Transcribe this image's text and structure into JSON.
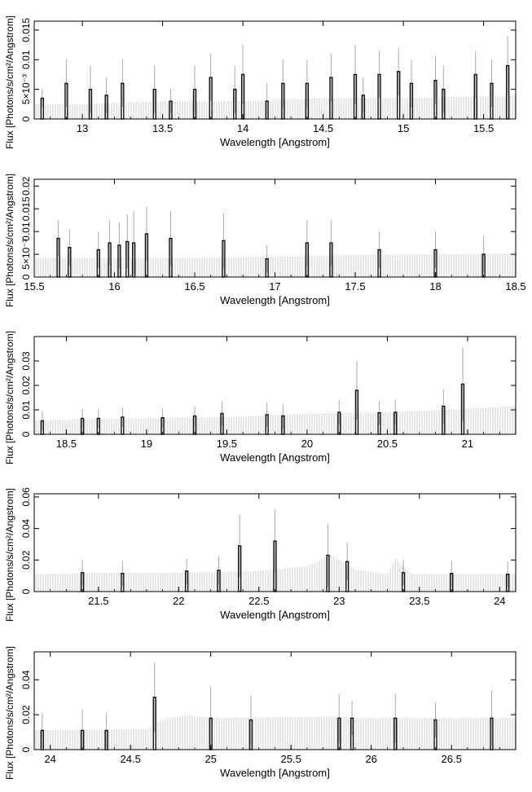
{
  "chart_data": [
    {
      "type": "histogram",
      "xlabel": "Wavelength [Angstrom]",
      "ylabel": "Flux [Photons/s/cm²/Angstrom]",
      "xlim": [
        12.7,
        15.7
      ],
      "ylim": [
        0,
        0.0165
      ],
      "xticks": [
        13,
        13.5,
        14,
        14.5,
        15,
        15.5
      ],
      "xtick_labels": [
        "13",
        "13.5",
        "14",
        "14.5",
        "15",
        "15.5"
      ],
      "yticks": [
        0,
        0.005,
        0.01,
        0.015
      ],
      "ytick_labels": [
        "0",
        "5×10⁻³",
        "0.01",
        "0.015"
      ],
      "baseline": [
        {
          "x": 12.7,
          "y": 0.0025
        },
        {
          "x": 13.0,
          "y": 0.0025
        },
        {
          "x": 13.5,
          "y": 0.003
        },
        {
          "x": 14.0,
          "y": 0.003
        },
        {
          "x": 14.5,
          "y": 0.0035
        },
        {
          "x": 15.0,
          "y": 0.0035
        },
        {
          "x": 15.7,
          "y": 0.004
        }
      ],
      "series": [
        {
          "points": [
            {
              "x": 12.75,
              "y": 0.0035,
              "err": 0.0015
            },
            {
              "x": 12.9,
              "y": 0.006,
              "err": 0.004
            },
            {
              "x": 13.05,
              "y": 0.005,
              "err": 0.004
            },
            {
              "x": 13.15,
              "y": 0.004,
              "err": 0.003
            },
            {
              "x": 13.25,
              "y": 0.006,
              "err": 0.004
            },
            {
              "x": 13.45,
              "y": 0.005,
              "err": 0.004
            },
            {
              "x": 13.55,
              "y": 0.003,
              "err": 0.002
            },
            {
              "x": 13.7,
              "y": 0.005,
              "err": 0.004
            },
            {
              "x": 13.8,
              "y": 0.007,
              "err": 0.004
            },
            {
              "x": 13.95,
              "y": 0.005,
              "err": 0.004
            },
            {
              "x": 14.0,
              "y": 0.0075,
              "err": 0.005
            },
            {
              "x": 14.15,
              "y": 0.003,
              "err": 0.003
            },
            {
              "x": 14.25,
              "y": 0.006,
              "err": 0.004
            },
            {
              "x": 14.4,
              "y": 0.006,
              "err": 0.004
            },
            {
              "x": 14.55,
              "y": 0.007,
              "err": 0.004
            },
            {
              "x": 14.7,
              "y": 0.0075,
              "err": 0.005
            },
            {
              "x": 14.75,
              "y": 0.004,
              "err": 0.003
            },
            {
              "x": 14.85,
              "y": 0.0075,
              "err": 0.004
            },
            {
              "x": 14.97,
              "y": 0.008,
              "err": 0.004
            },
            {
              "x": 15.05,
              "y": 0.006,
              "err": 0.004
            },
            {
              "x": 15.2,
              "y": 0.0065,
              "err": 0.004
            },
            {
              "x": 15.25,
              "y": 0.005,
              "err": 0.004
            },
            {
              "x": 15.45,
              "y": 0.0075,
              "err": 0.004
            },
            {
              "x": 15.55,
              "y": 0.006,
              "err": 0.004
            },
            {
              "x": 15.65,
              "y": 0.009,
              "err": 0.005
            }
          ]
        }
      ]
    },
    {
      "type": "histogram",
      "xlabel": "Wavelength [Angstrom]",
      "ylabel": "Flux [Photons/s/cm²/Angstrom]",
      "xlim": [
        15.5,
        18.5
      ],
      "ylim": [
        0,
        0.0215
      ],
      "xticks": [
        15.5,
        16,
        16.5,
        17,
        17.5,
        18,
        18.5
      ],
      "xtick_labels": [
        "15.5",
        "16",
        "16.5",
        "17",
        "17.5",
        "18",
        "18.5"
      ],
      "yticks": [
        0,
        0.005,
        0.01,
        0.015,
        0.02
      ],
      "ytick_labels": [
        "0",
        "5×10⁻³",
        "0.01",
        "0.015",
        "0.02"
      ],
      "baseline": [
        {
          "x": 15.5,
          "y": 0.0042
        },
        {
          "x": 16.0,
          "y": 0.0042
        },
        {
          "x": 16.5,
          "y": 0.0042
        },
        {
          "x": 17.0,
          "y": 0.0045
        },
        {
          "x": 17.5,
          "y": 0.0048
        },
        {
          "x": 18.0,
          "y": 0.005
        },
        {
          "x": 18.5,
          "y": 0.0052
        }
      ],
      "series": [
        {
          "points": [
            {
              "x": 15.65,
              "y": 0.0085,
              "err": 0.004
            },
            {
              "x": 15.72,
              "y": 0.0065,
              "err": 0.004
            },
            {
              "x": 15.9,
              "y": 0.006,
              "err": 0.004
            },
            {
              "x": 15.97,
              "y": 0.0075,
              "err": 0.005
            },
            {
              "x": 16.03,
              "y": 0.007,
              "err": 0.005
            },
            {
              "x": 16.08,
              "y": 0.0078,
              "err": 0.006
            },
            {
              "x": 16.12,
              "y": 0.0075,
              "err": 0.007
            },
            {
              "x": 16.2,
              "y": 0.0095,
              "err": 0.006
            },
            {
              "x": 16.35,
              "y": 0.0085,
              "err": 0.006
            },
            {
              "x": 16.68,
              "y": 0.008,
              "err": 0.006
            },
            {
              "x": 16.95,
              "y": 0.004,
              "err": 0.003
            },
            {
              "x": 17.2,
              "y": 0.0075,
              "err": 0.005
            },
            {
              "x": 17.35,
              "y": 0.0075,
              "err": 0.005
            },
            {
              "x": 17.65,
              "y": 0.006,
              "err": 0.004
            },
            {
              "x": 18.0,
              "y": 0.006,
              "err": 0.004
            },
            {
              "x": 18.3,
              "y": 0.005,
              "err": 0.004
            }
          ]
        }
      ]
    },
    {
      "type": "histogram",
      "xlabel": "Wavelength [Angstrom]",
      "ylabel": "Flux [Photons/s/cm²/Angstrom]",
      "xlim": [
        18.3,
        21.3
      ],
      "ylim": [
        0,
        0.04
      ],
      "xticks": [
        18.5,
        19,
        19.5,
        20,
        20.5,
        21
      ],
      "xtick_labels": [
        "18.5",
        "19",
        "19.5",
        "20",
        "20.5",
        "21"
      ],
      "yticks": [
        0,
        0.01,
        0.02,
        0.03
      ],
      "ytick_labels": [
        "0",
        "0.01",
        "0.02",
        "0.03"
      ],
      "baseline": [
        {
          "x": 18.3,
          "y": 0.0058
        },
        {
          "x": 19.0,
          "y": 0.0065
        },
        {
          "x": 19.5,
          "y": 0.007
        },
        {
          "x": 20.0,
          "y": 0.0085
        },
        {
          "x": 20.5,
          "y": 0.009
        },
        {
          "x": 21.0,
          "y": 0.0105
        },
        {
          "x": 21.3,
          "y": 0.0115
        }
      ],
      "series": [
        {
          "points": [
            {
              "x": 18.35,
              "y": 0.0055,
              "err": 0.004
            },
            {
              "x": 18.6,
              "y": 0.0065,
              "err": 0.004
            },
            {
              "x": 18.7,
              "y": 0.0065,
              "err": 0.004
            },
            {
              "x": 18.85,
              "y": 0.007,
              "err": 0.004
            },
            {
              "x": 19.1,
              "y": 0.0068,
              "err": 0.004
            },
            {
              "x": 19.3,
              "y": 0.0075,
              "err": 0.004
            },
            {
              "x": 19.47,
              "y": 0.0085,
              "err": 0.005
            },
            {
              "x": 19.75,
              "y": 0.008,
              "err": 0.005
            },
            {
              "x": 19.85,
              "y": 0.0075,
              "err": 0.005
            },
            {
              "x": 20.2,
              "y": 0.009,
              "err": 0.005
            },
            {
              "x": 20.31,
              "y": 0.018,
              "err": 0.012
            },
            {
              "x": 20.45,
              "y": 0.0088,
              "err": 0.005
            },
            {
              "x": 20.55,
              "y": 0.009,
              "err": 0.005
            },
            {
              "x": 20.85,
              "y": 0.0115,
              "err": 0.007
            },
            {
              "x": 20.97,
              "y": 0.0205,
              "err": 0.015
            }
          ]
        }
      ]
    },
    {
      "type": "histogram",
      "xlabel": "Wavelength [Angstrom]",
      "ylabel": "Flux [Photons/s/cm²/Angstrom]",
      "xlim": [
        21.1,
        24.1
      ],
      "ylim": [
        0,
        0.062
      ],
      "xticks": [
        21.5,
        22,
        22.5,
        23,
        23.5,
        24
      ],
      "xtick_labels": [
        "21.5",
        "22",
        "22.5",
        "23",
        "23.5",
        "24"
      ],
      "yticks": [
        0,
        0.02,
        0.04,
        0.06
      ],
      "ytick_labels": [
        "0",
        "0.02",
        "0.04",
        "0.06"
      ],
      "baseline": [
        {
          "x": 21.1,
          "y": 0.011
        },
        {
          "x": 21.5,
          "y": 0.012
        },
        {
          "x": 22.0,
          "y": 0.012
        },
        {
          "x": 22.5,
          "y": 0.013
        },
        {
          "x": 22.8,
          "y": 0.016
        },
        {
          "x": 22.95,
          "y": 0.023
        },
        {
          "x": 23.1,
          "y": 0.014
        },
        {
          "x": 23.3,
          "y": 0.011
        },
        {
          "x": 23.35,
          "y": 0.021
        },
        {
          "x": 23.45,
          "y": 0.011
        },
        {
          "x": 24.1,
          "y": 0.011
        }
      ],
      "series": [
        {
          "points": [
            {
              "x": 21.4,
              "y": 0.012,
              "err": 0.008
            },
            {
              "x": 21.65,
              "y": 0.0115,
              "err": 0.008
            },
            {
              "x": 22.05,
              "y": 0.013,
              "err": 0.008
            },
            {
              "x": 22.25,
              "y": 0.0135,
              "err": 0.009
            },
            {
              "x": 22.38,
              "y": 0.029,
              "err": 0.02
            },
            {
              "x": 22.6,
              "y": 0.032,
              "err": 0.02
            },
            {
              "x": 22.93,
              "y": 0.023,
              "err": 0.02
            },
            {
              "x": 23.05,
              "y": 0.019,
              "err": 0.012
            },
            {
              "x": 23.4,
              "y": 0.012,
              "err": 0.008
            },
            {
              "x": 23.7,
              "y": 0.0115,
              "err": 0.008
            },
            {
              "x": 24.05,
              "y": 0.011,
              "err": 0.008
            }
          ]
        }
      ]
    },
    {
      "type": "histogram",
      "xlabel": "Wavelength [Angstrom]",
      "ylabel": "Flux [Photons/s/cm²/Angstrom]",
      "xlim": [
        23.9,
        26.9
      ],
      "ylim": [
        0,
        0.056
      ],
      "xticks": [
        24,
        24.5,
        25,
        25.5,
        26,
        26.5
      ],
      "xtick_labels": [
        "24",
        "24.5",
        "25",
        "25.5",
        "26",
        "26.5"
      ],
      "yticks": [
        0,
        0.02,
        0.04
      ],
      "ytick_labels": [
        "0",
        "0.02",
        "0.04"
      ],
      "baseline": [
        {
          "x": 23.9,
          "y": 0.011
        },
        {
          "x": 24.6,
          "y": 0.012
        },
        {
          "x": 24.7,
          "y": 0.017
        },
        {
          "x": 24.85,
          "y": 0.02
        },
        {
          "x": 25.0,
          "y": 0.018
        },
        {
          "x": 25.8,
          "y": 0.019
        },
        {
          "x": 25.9,
          "y": 0.018
        },
        {
          "x": 26.9,
          "y": 0.018
        }
      ],
      "series": [
        {
          "points": [
            {
              "x": 23.95,
              "y": 0.011,
              "err": 0.01
            },
            {
              "x": 24.2,
              "y": 0.011,
              "err": 0.012
            },
            {
              "x": 24.35,
              "y": 0.011,
              "err": 0.01
            },
            {
              "x": 24.65,
              "y": 0.03,
              "err": 0.02
            },
            {
              "x": 25.0,
              "y": 0.018,
              "err": 0.018
            },
            {
              "x": 25.25,
              "y": 0.017,
              "err": 0.014
            },
            {
              "x": 25.8,
              "y": 0.018,
              "err": 0.014
            },
            {
              "x": 25.88,
              "y": 0.018,
              "err": 0.01
            },
            {
              "x": 26.15,
              "y": 0.018,
              "err": 0.014
            },
            {
              "x": 26.4,
              "y": 0.017,
              "err": 0.01
            },
            {
              "x": 26.75,
              "y": 0.018,
              "err": 0.016
            }
          ]
        }
      ]
    }
  ]
}
